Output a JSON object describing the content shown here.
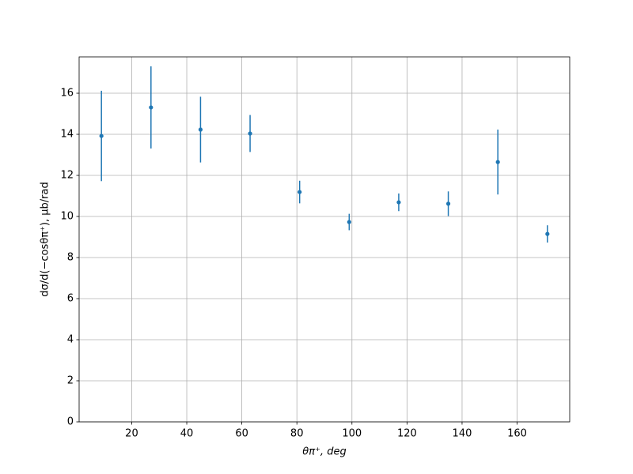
{
  "chart_data": {
    "type": "errorbar",
    "x": [
      9,
      27,
      45,
      63,
      81,
      99,
      117,
      135,
      153,
      171
    ],
    "values": [
      13.92,
      15.31,
      14.23,
      14.04,
      11.19,
      9.73,
      10.69,
      10.62,
      12.65,
      9.15
    ],
    "errors": [
      2.2,
      2.0,
      1.6,
      0.9,
      0.55,
      0.4,
      0.43,
      0.6,
      1.58,
      0.42
    ],
    "color": "#1f77b4",
    "xlim": [
      0.9,
      179.1
    ],
    "ylim": [
      0,
      17.77
    ],
    "xticks": [
      20,
      40,
      60,
      80,
      100,
      120,
      140,
      160
    ],
    "yticks": [
      0,
      2,
      4,
      6,
      8,
      10,
      12,
      14,
      16
    ],
    "grid": true,
    "xlabel": "θπ⁺, deg",
    "ylabel": "dσ/d(−cosθπ⁺), μb/rad"
  }
}
